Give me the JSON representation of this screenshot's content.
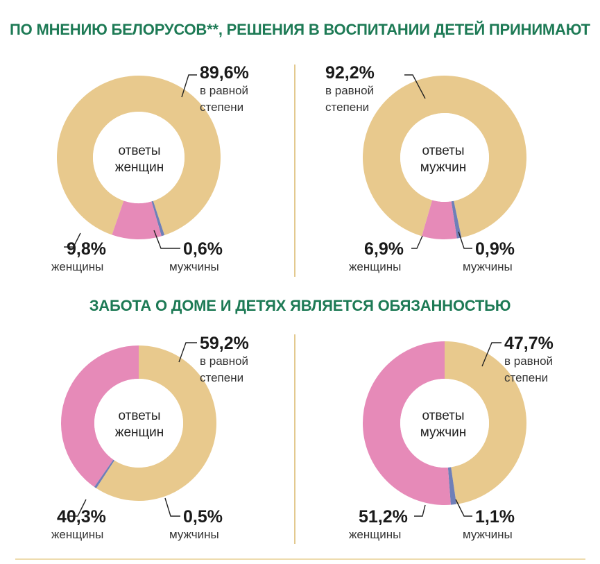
{
  "titles": {
    "top": "ПО МНЕНИЮ БЕЛОРУСОВ**, РЕШЕНИЯ В ВОСПИТАНИИ ДЕТЕЙ ПРИНИМАЮТ",
    "bottom": "ЗАБОТА О ДОМЕ И ДЕТЯХ ЯВЛЯЕТСЯ ОБЯЗАННОСТЬЮ"
  },
  "colors": {
    "equal": "#e8c98d",
    "women": "#e68ab8",
    "men": "#6f7fb8",
    "title": "#1d7a55"
  },
  "chart_data": [
    {
      "type": "pie",
      "donut": true,
      "center_label": [
        "ответы",
        "женщин"
      ],
      "slices": [
        {
          "label": [
            "в равной",
            "степени"
          ],
          "value": 89.6,
          "value_text": "89,6%"
        },
        {
          "label": [
            "мужчины"
          ],
          "value": 0.6,
          "value_text": "0,6%"
        },
        {
          "label": [
            "женщины"
          ],
          "value": 9.8,
          "value_text": "9,8%"
        }
      ]
    },
    {
      "type": "pie",
      "donut": true,
      "center_label": [
        "ответы",
        "мужчин"
      ],
      "slices": [
        {
          "label": [
            "в равной",
            "степени"
          ],
          "value": 92.2,
          "value_text": "92,2%"
        },
        {
          "label": [
            "мужчины"
          ],
          "value": 0.9,
          "value_text": "0,9%"
        },
        {
          "label": [
            "женщины"
          ],
          "value": 6.9,
          "value_text": "6,9%"
        }
      ]
    },
    {
      "type": "pie",
      "donut": true,
      "center_label": [
        "ответы",
        "женщин"
      ],
      "slices": [
        {
          "label": [
            "в равной",
            "степени"
          ],
          "value": 59.2,
          "value_text": "59,2%"
        },
        {
          "label": [
            "мужчины"
          ],
          "value": 0.5,
          "value_text": "0,5%"
        },
        {
          "label": [
            "женщины"
          ],
          "value": 40.3,
          "value_text": "40,3%"
        }
      ]
    },
    {
      "type": "pie",
      "donut": true,
      "center_label": [
        "ответы",
        "мужчин"
      ],
      "slices": [
        {
          "label": [
            "в равной",
            "степени"
          ],
          "value": 47.7,
          "value_text": "47,7%"
        },
        {
          "label": [
            "мужчины"
          ],
          "value": 1.1,
          "value_text": "1,1%"
        },
        {
          "label": [
            "женщины"
          ],
          "value": 51.2,
          "value_text": "51,2%"
        }
      ]
    }
  ]
}
